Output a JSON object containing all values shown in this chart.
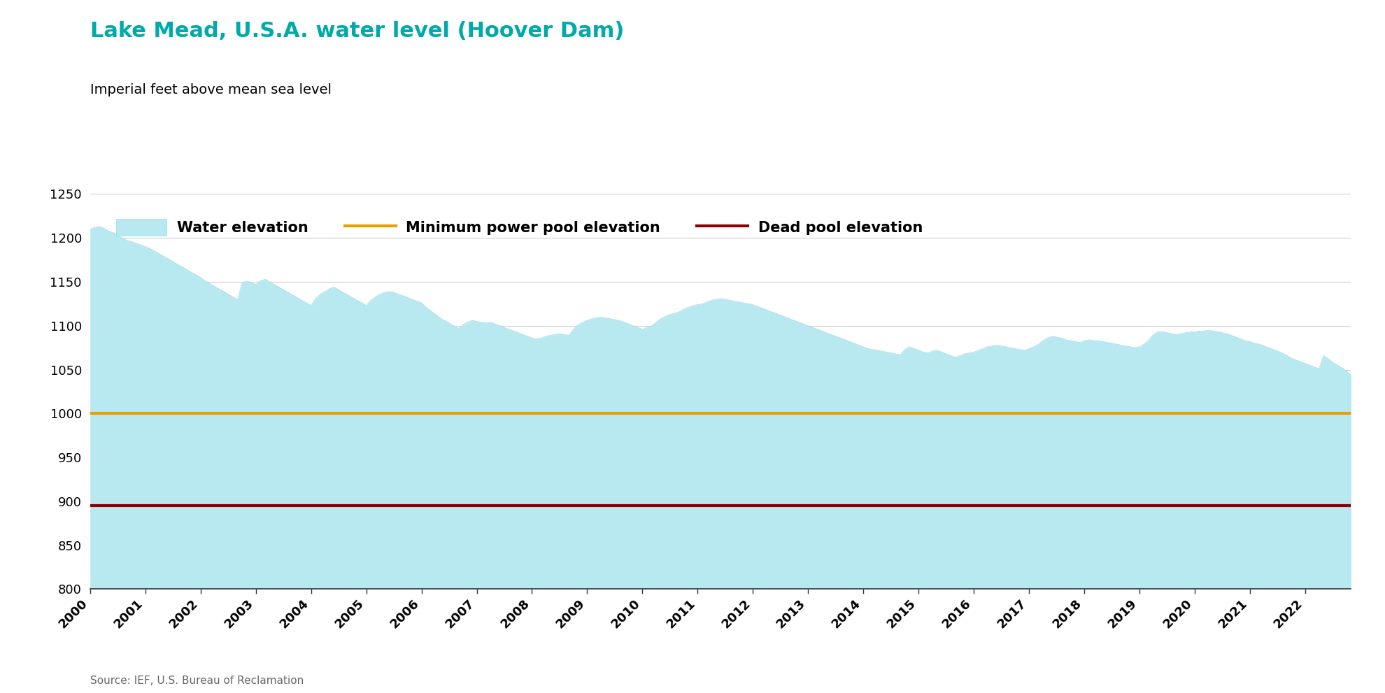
{
  "title": "Lake Mead, U.S.A. water level (Hoover Dam)",
  "subtitle": "Imperial feet above mean sea level",
  "title_color": "#00AAAA",
  "subtitle_color": "#000000",
  "source_text": "Source: IEF, U.S. Bureau of Reclamation",
  "min_power_pool": 1000,
  "dead_pool": 895,
  "min_power_pool_color": "#E8A000",
  "dead_pool_color": "#8B0000",
  "fill_color": "#B8E8F0",
  "fill_alpha": 1.0,
  "ylim": [
    800,
    1250
  ],
  "yticks": [
    800,
    850,
    900,
    950,
    1000,
    1050,
    1100,
    1150,
    1200,
    1250
  ],
  "xlim": [
    2000,
    2022.83
  ],
  "background_color": "#FFFFFF",
  "grid_color": "#CCCCCC",
  "legend_items": [
    "Water elevation",
    "Minimum power pool elevation",
    "Dead pool elevation"
  ],
  "title_fontsize": 22,
  "subtitle_fontsize": 14,
  "tick_fontsize": 13,
  "source_fontsize": 11,
  "water_data": [
    [
      2000.0,
      1210
    ],
    [
      2000.08,
      1212
    ],
    [
      2000.17,
      1213
    ],
    [
      2000.25,
      1211
    ],
    [
      2000.33,
      1208
    ],
    [
      2000.42,
      1206
    ],
    [
      2000.5,
      1203
    ],
    [
      2000.58,
      1200
    ],
    [
      2000.67,
      1197
    ],
    [
      2000.75,
      1196
    ],
    [
      2000.83,
      1194
    ],
    [
      2000.92,
      1192
    ],
    [
      2001.0,
      1190
    ],
    [
      2001.08,
      1188
    ],
    [
      2001.17,
      1185
    ],
    [
      2001.25,
      1182
    ],
    [
      2001.33,
      1179
    ],
    [
      2001.42,
      1176
    ],
    [
      2001.5,
      1173
    ],
    [
      2001.58,
      1170
    ],
    [
      2001.67,
      1167
    ],
    [
      2001.75,
      1164
    ],
    [
      2001.83,
      1161
    ],
    [
      2001.92,
      1158
    ],
    [
      2002.0,
      1155
    ],
    [
      2002.08,
      1151
    ],
    [
      2002.17,
      1148
    ],
    [
      2002.25,
      1145
    ],
    [
      2002.33,
      1142
    ],
    [
      2002.42,
      1139
    ],
    [
      2002.5,
      1136
    ],
    [
      2002.58,
      1133
    ],
    [
      2002.67,
      1130
    ],
    [
      2002.75,
      1148
    ],
    [
      2002.83,
      1151
    ],
    [
      2002.92,
      1149
    ],
    [
      2003.0,
      1147
    ],
    [
      2003.08,
      1151
    ],
    [
      2003.17,
      1153
    ],
    [
      2003.25,
      1150
    ],
    [
      2003.33,
      1147
    ],
    [
      2003.42,
      1144
    ],
    [
      2003.5,
      1141
    ],
    [
      2003.58,
      1138
    ],
    [
      2003.67,
      1135
    ],
    [
      2003.75,
      1132
    ],
    [
      2003.83,
      1129
    ],
    [
      2003.92,
      1126
    ],
    [
      2004.0,
      1123
    ],
    [
      2004.08,
      1131
    ],
    [
      2004.17,
      1136
    ],
    [
      2004.25,
      1139
    ],
    [
      2004.33,
      1142
    ],
    [
      2004.42,
      1144
    ],
    [
      2004.5,
      1141
    ],
    [
      2004.58,
      1138
    ],
    [
      2004.67,
      1135
    ],
    [
      2004.75,
      1132
    ],
    [
      2004.83,
      1129
    ],
    [
      2004.92,
      1126
    ],
    [
      2005.0,
      1123
    ],
    [
      2005.08,
      1129
    ],
    [
      2005.17,
      1133
    ],
    [
      2005.25,
      1136
    ],
    [
      2005.33,
      1138
    ],
    [
      2005.42,
      1139
    ],
    [
      2005.5,
      1138
    ],
    [
      2005.58,
      1136
    ],
    [
      2005.67,
      1134
    ],
    [
      2005.75,
      1132
    ],
    [
      2005.83,
      1130
    ],
    [
      2005.92,
      1128
    ],
    [
      2006.0,
      1126
    ],
    [
      2006.08,
      1121
    ],
    [
      2006.17,
      1117
    ],
    [
      2006.25,
      1113
    ],
    [
      2006.33,
      1109
    ],
    [
      2006.42,
      1106
    ],
    [
      2006.5,
      1103
    ],
    [
      2006.58,
      1100
    ],
    [
      2006.67,
      1097
    ],
    [
      2006.75,
      1101
    ],
    [
      2006.83,
      1104
    ],
    [
      2006.92,
      1106
    ],
    [
      2007.0,
      1105
    ],
    [
      2007.08,
      1104
    ],
    [
      2007.17,
      1103
    ],
    [
      2007.25,
      1104
    ],
    [
      2007.33,
      1102
    ],
    [
      2007.42,
      1100
    ],
    [
      2007.5,
      1098
    ],
    [
      2007.58,
      1096
    ],
    [
      2007.67,
      1094
    ],
    [
      2007.75,
      1092
    ],
    [
      2007.83,
      1090
    ],
    [
      2007.92,
      1088
    ],
    [
      2008.0,
      1086
    ],
    [
      2008.08,
      1085
    ],
    [
      2008.17,
      1086
    ],
    [
      2008.25,
      1088
    ],
    [
      2008.33,
      1089
    ],
    [
      2008.42,
      1090
    ],
    [
      2008.5,
      1091
    ],
    [
      2008.58,
      1090
    ],
    [
      2008.67,
      1089
    ],
    [
      2008.75,
      1096
    ],
    [
      2008.83,
      1101
    ],
    [
      2008.92,
      1104
    ],
    [
      2009.0,
      1106
    ],
    [
      2009.08,
      1108
    ],
    [
      2009.17,
      1109
    ],
    [
      2009.25,
      1110
    ],
    [
      2009.33,
      1109
    ],
    [
      2009.42,
      1108
    ],
    [
      2009.5,
      1107
    ],
    [
      2009.58,
      1106
    ],
    [
      2009.67,
      1104
    ],
    [
      2009.75,
      1102
    ],
    [
      2009.83,
      1100
    ],
    [
      2009.92,
      1098
    ],
    [
      2010.0,
      1096
    ],
    [
      2010.08,
      1098
    ],
    [
      2010.17,
      1100
    ],
    [
      2010.25,
      1104
    ],
    [
      2010.33,
      1108
    ],
    [
      2010.42,
      1111
    ],
    [
      2010.5,
      1113
    ],
    [
      2010.58,
      1114
    ],
    [
      2010.67,
      1116
    ],
    [
      2010.75,
      1119
    ],
    [
      2010.83,
      1121
    ],
    [
      2010.92,
      1123
    ],
    [
      2011.0,
      1124
    ],
    [
      2011.08,
      1125
    ],
    [
      2011.17,
      1127
    ],
    [
      2011.25,
      1129
    ],
    [
      2011.33,
      1130
    ],
    [
      2011.42,
      1131
    ],
    [
      2011.5,
      1130
    ],
    [
      2011.58,
      1129
    ],
    [
      2011.67,
      1128
    ],
    [
      2011.75,
      1127
    ],
    [
      2011.83,
      1126
    ],
    [
      2011.92,
      1125
    ],
    [
      2012.0,
      1124
    ],
    [
      2012.08,
      1122
    ],
    [
      2012.17,
      1120
    ],
    [
      2012.25,
      1118
    ],
    [
      2012.33,
      1116
    ],
    [
      2012.42,
      1114
    ],
    [
      2012.5,
      1112
    ],
    [
      2012.58,
      1110
    ],
    [
      2012.67,
      1108
    ],
    [
      2012.75,
      1106
    ],
    [
      2012.83,
      1104
    ],
    [
      2012.92,
      1102
    ],
    [
      2013.0,
      1100
    ],
    [
      2013.08,
      1098
    ],
    [
      2013.17,
      1096
    ],
    [
      2013.25,
      1094
    ],
    [
      2013.33,
      1092
    ],
    [
      2013.42,
      1090
    ],
    [
      2013.5,
      1088
    ],
    [
      2013.58,
      1086
    ],
    [
      2013.67,
      1084
    ],
    [
      2013.75,
      1082
    ],
    [
      2013.83,
      1080
    ],
    [
      2013.92,
      1078
    ],
    [
      2014.0,
      1076
    ],
    [
      2014.08,
      1074
    ],
    [
      2014.17,
      1073
    ],
    [
      2014.25,
      1072
    ],
    [
      2014.33,
      1071
    ],
    [
      2014.42,
      1070
    ],
    [
      2014.5,
      1069
    ],
    [
      2014.58,
      1068
    ],
    [
      2014.67,
      1067
    ],
    [
      2014.75,
      1073
    ],
    [
      2014.83,
      1076
    ],
    [
      2014.92,
      1074
    ],
    [
      2015.0,
      1072
    ],
    [
      2015.08,
      1070
    ],
    [
      2015.17,
      1069
    ],
    [
      2015.25,
      1071
    ],
    [
      2015.33,
      1072
    ],
    [
      2015.42,
      1070
    ],
    [
      2015.5,
      1068
    ],
    [
      2015.58,
      1066
    ],
    [
      2015.67,
      1064
    ],
    [
      2015.75,
      1066
    ],
    [
      2015.83,
      1068
    ],
    [
      2015.92,
      1069
    ],
    [
      2016.0,
      1070
    ],
    [
      2016.08,
      1072
    ],
    [
      2016.17,
      1074
    ],
    [
      2016.25,
      1076
    ],
    [
      2016.33,
      1077
    ],
    [
      2016.42,
      1078
    ],
    [
      2016.5,
      1077
    ],
    [
      2016.58,
      1076
    ],
    [
      2016.67,
      1075
    ],
    [
      2016.75,
      1074
    ],
    [
      2016.83,
      1073
    ],
    [
      2016.92,
      1072
    ],
    [
      2017.0,
      1074
    ],
    [
      2017.08,
      1076
    ],
    [
      2017.17,
      1079
    ],
    [
      2017.25,
      1083
    ],
    [
      2017.33,
      1086
    ],
    [
      2017.42,
      1088
    ],
    [
      2017.5,
      1087
    ],
    [
      2017.58,
      1086
    ],
    [
      2017.67,
      1084
    ],
    [
      2017.75,
      1083
    ],
    [
      2017.83,
      1082
    ],
    [
      2017.92,
      1081
    ],
    [
      2018.0,
      1083
    ],
    [
      2018.08,
      1084
    ],
    [
      2018.17,
      1083
    ],
    [
      2018.25,
      1083
    ],
    [
      2018.33,
      1082
    ],
    [
      2018.42,
      1081
    ],
    [
      2018.5,
      1080
    ],
    [
      2018.58,
      1079
    ],
    [
      2018.67,
      1078
    ],
    [
      2018.75,
      1077
    ],
    [
      2018.83,
      1076
    ],
    [
      2018.92,
      1075
    ],
    [
      2019.0,
      1076
    ],
    [
      2019.08,
      1079
    ],
    [
      2019.17,
      1084
    ],
    [
      2019.25,
      1090
    ],
    [
      2019.33,
      1093
    ],
    [
      2019.42,
      1093
    ],
    [
      2019.5,
      1092
    ],
    [
      2019.58,
      1091
    ],
    [
      2019.67,
      1090
    ],
    [
      2019.75,
      1091
    ],
    [
      2019.83,
      1092
    ],
    [
      2019.92,
      1093
    ],
    [
      2020.0,
      1093
    ],
    [
      2020.08,
      1094
    ],
    [
      2020.17,
      1094
    ],
    [
      2020.25,
      1095
    ],
    [
      2020.33,
      1094
    ],
    [
      2020.42,
      1093
    ],
    [
      2020.5,
      1092
    ],
    [
      2020.58,
      1091
    ],
    [
      2020.67,
      1089
    ],
    [
      2020.75,
      1087
    ],
    [
      2020.83,
      1085
    ],
    [
      2020.92,
      1083
    ],
    [
      2021.0,
      1082
    ],
    [
      2021.08,
      1080
    ],
    [
      2021.17,
      1079
    ],
    [
      2021.25,
      1077
    ],
    [
      2021.33,
      1075
    ],
    [
      2021.42,
      1073
    ],
    [
      2021.5,
      1071
    ],
    [
      2021.58,
      1069
    ],
    [
      2021.67,
      1066
    ],
    [
      2021.75,
      1063
    ],
    [
      2021.83,
      1061
    ],
    [
      2021.92,
      1059
    ],
    [
      2022.0,
      1057
    ],
    [
      2022.08,
      1055
    ],
    [
      2022.17,
      1053
    ],
    [
      2022.25,
      1051
    ],
    [
      2022.33,
      1066
    ],
    [
      2022.42,
      1062
    ],
    [
      2022.5,
      1058
    ],
    [
      2022.58,
      1055
    ],
    [
      2022.67,
      1052
    ],
    [
      2022.75,
      1048
    ],
    [
      2022.83,
      1044
    ]
  ]
}
